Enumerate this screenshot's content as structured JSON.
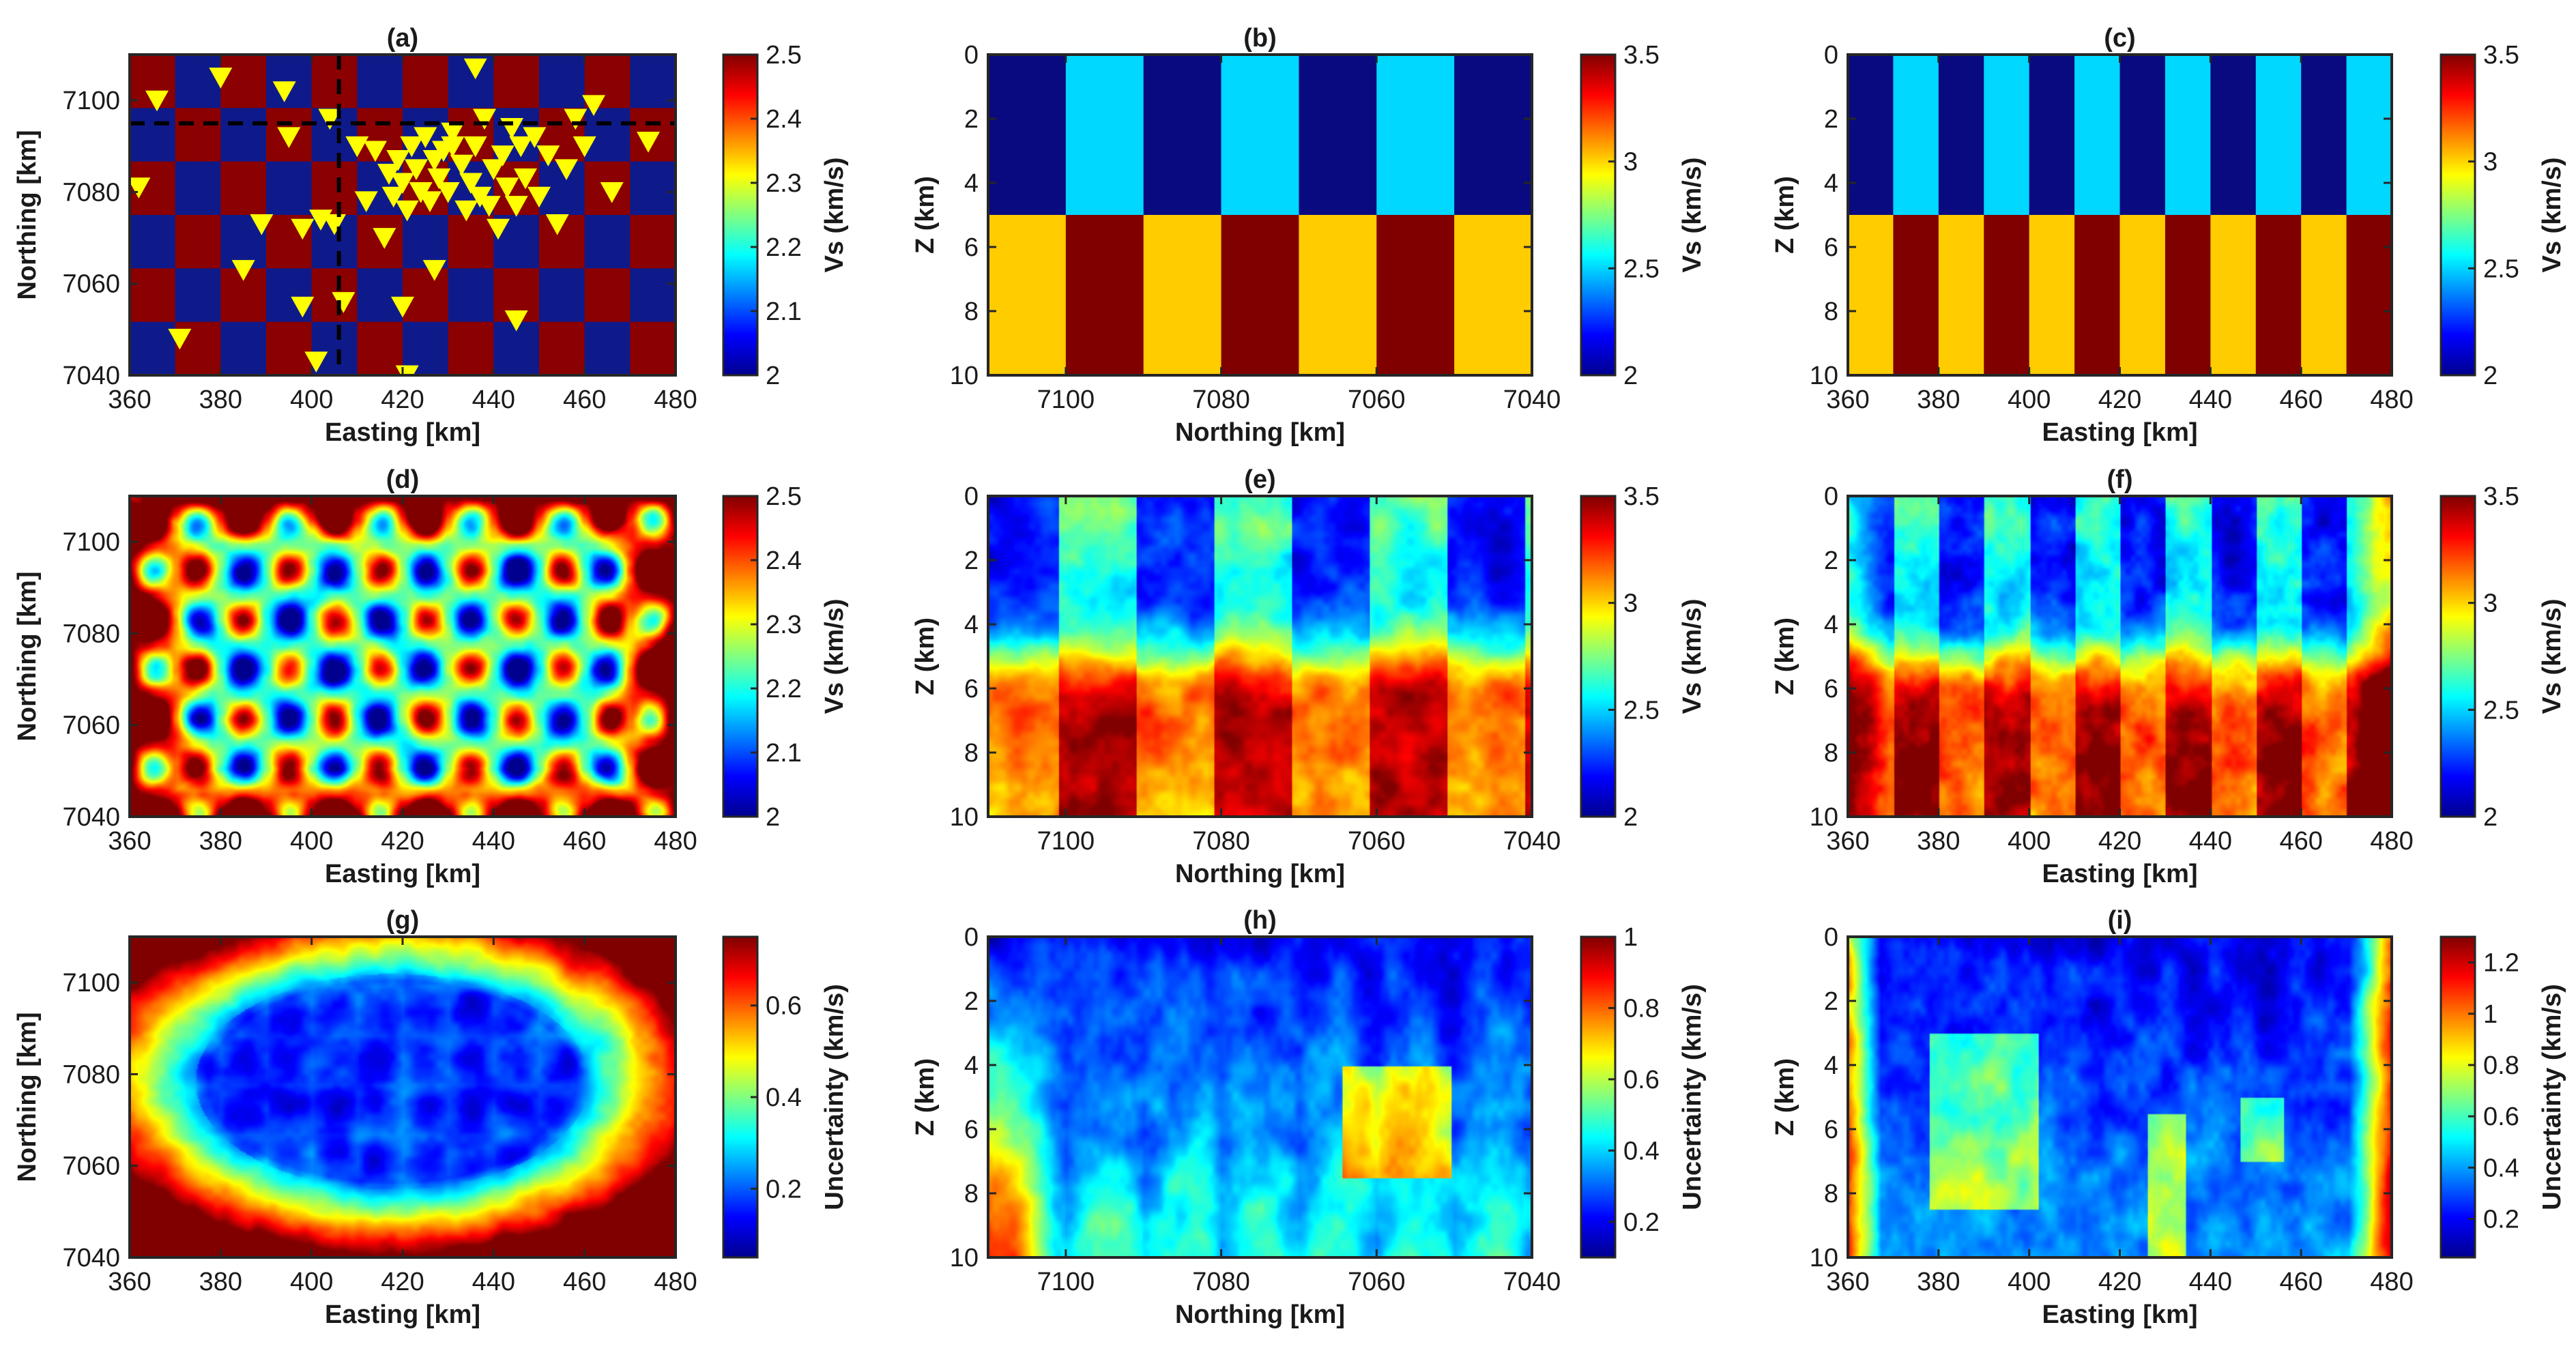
{
  "colormaps": {
    "jet": [
      "#00008f",
      "#0000ff",
      "#0080ff",
      "#00ffff",
      "#80ff80",
      "#ffff00",
      "#ff8000",
      "#ff0000",
      "#800000"
    ],
    "vs_model": {
      "low_top": "#0a0a80",
      "high_top": "#00d8ff",
      "low_bottom": "#ffcc00",
      "high_bottom": "#800000",
      "checker_low": "#0f1a8a",
      "checker_high": "#8b0000"
    },
    "station_color": "#ffff00"
  },
  "chart_data": [
    {
      "id": "a",
      "type": "heatmap",
      "title": "(a)",
      "xlabel": "Easting [km]",
      "ylabel": "Northing [km]",
      "xlim": [
        360,
        480
      ],
      "ylim": [
        7040,
        7110
      ],
      "xticks": [
        "360",
        "380",
        "400",
        "420",
        "440",
        "460",
        "480"
      ],
      "yticks": [
        "7040",
        "7060",
        "7080",
        "7100"
      ],
      "colorbar": {
        "label": "Vs (km/s)",
        "range": [
          2,
          2.5
        ],
        "ticks": [
          "2",
          "2.1",
          "2.2",
          "2.3",
          "2.4",
          "2.5"
        ]
      },
      "checker": {
        "nx": 12,
        "ny": 6,
        "values": [
          2.0,
          2.5
        ]
      },
      "profile_lines": {
        "easting": 406,
        "northing": 7095
      },
      "stations": [
        [
          366,
          7100
        ],
        [
          371,
          7048
        ],
        [
          362,
          7081
        ],
        [
          385,
          7063
        ],
        [
          389,
          7073
        ],
        [
          394,
          7102
        ],
        [
          395,
          7092
        ],
        [
          398,
          7055
        ],
        [
          401,
          7043
        ],
        [
          402,
          7074
        ],
        [
          404,
          7096
        ],
        [
          405,
          7073
        ],
        [
          407,
          7056
        ],
        [
          410,
          7090
        ],
        [
          414,
          7089
        ],
        [
          417,
          7084
        ],
        [
          418,
          7079
        ],
        [
          419,
          7087
        ],
        [
          420,
          7082
        ],
        [
          421,
          7076
        ],
        [
          422,
          7090
        ],
        [
          423,
          7085
        ],
        [
          424,
          7080
        ],
        [
          425,
          7092
        ],
        [
          426,
          7078
        ],
        [
          427,
          7087
        ],
        [
          428,
          7083
        ],
        [
          429,
          7089
        ],
        [
          430,
          7080
        ],
        [
          431,
          7093
        ],
        [
          433,
          7086
        ],
        [
          434,
          7076
        ],
        [
          435,
          7082
        ],
        [
          436,
          7090
        ],
        [
          437,
          7079
        ],
        [
          438,
          7096
        ],
        [
          440,
          7085
        ],
        [
          441,
          7072
        ],
        [
          442,
          7088
        ],
        [
          443,
          7081
        ],
        [
          444,
          7094
        ],
        [
          445,
          7077
        ],
        [
          446,
          7090
        ],
        [
          447,
          7083
        ],
        [
          449,
          7092
        ],
        [
          450,
          7079
        ],
        [
          452,
          7088
        ],
        [
          454,
          7073
        ],
        [
          456,
          7085
        ],
        [
          458,
          7096
        ],
        [
          460,
          7090
        ],
        [
          462,
          7099
        ],
        [
          466,
          7080
        ],
        [
          474,
          7091
        ],
        [
          416,
          7070
        ],
        [
          421,
          7040
        ],
        [
          420,
          7055
        ],
        [
          427,
          7063
        ],
        [
          436,
          7107
        ],
        [
          445,
          7052
        ],
        [
          380,
          7105
        ],
        [
          398,
          7072
        ],
        [
          431,
          7090
        ],
        [
          439,
          7077
        ],
        [
          412,
          7078
        ]
      ]
    },
    {
      "id": "b",
      "type": "heatmap",
      "title": "(b)",
      "xlabel": "Northing [km]",
      "ylabel": "Z (km)",
      "xlim": [
        7110,
        7040
      ],
      "ylim": [
        0,
        10
      ],
      "xticks": [
        "7100",
        "7080",
        "7060",
        "7040"
      ],
      "yticks": [
        "0",
        "2",
        "4",
        "6",
        "8",
        "10"
      ],
      "colorbar": {
        "label": "Vs (km/s)",
        "range": [
          2,
          3.5
        ],
        "ticks": [
          "2",
          "2.5",
          "3",
          "3.5"
        ]
      },
      "blocks": {
        "n": 7,
        "split_depth": 5
      }
    },
    {
      "id": "c",
      "type": "heatmap",
      "title": "(c)",
      "xlabel": "Easting [km]",
      "ylabel": "Z (km)",
      "xlim": [
        360,
        480
      ],
      "ylim": [
        0,
        10
      ],
      "xticks": [
        "360",
        "380",
        "400",
        "420",
        "440",
        "460",
        "480"
      ],
      "yticks": [
        "0",
        "2",
        "4",
        "6",
        "8",
        "10"
      ],
      "colorbar": {
        "label": "Vs (km/s)",
        "range": [
          2,
          3.5
        ],
        "ticks": [
          "2",
          "2.5",
          "3",
          "3.5"
        ]
      },
      "blocks": {
        "n": 12,
        "split_depth": 5
      }
    },
    {
      "id": "d",
      "type": "heatmap",
      "title": "(d)",
      "xlabel": "Easting [km]",
      "ylabel": "Northing [km]",
      "xlim": [
        360,
        480
      ],
      "ylim": [
        7040,
        7110
      ],
      "xticks": [
        "360",
        "380",
        "400",
        "420",
        "440",
        "460",
        "480"
      ],
      "yticks": [
        "7040",
        "7060",
        "7080",
        "7100"
      ],
      "colorbar": {
        "label": "Vs (km/s)",
        "range": [
          2,
          2.5
        ],
        "ticks": [
          "2",
          "2.1",
          "2.2",
          "2.3",
          "2.4",
          "2.5"
        ]
      }
    },
    {
      "id": "e",
      "type": "heatmap",
      "title": "(e)",
      "xlabel": "Northing [km]",
      "ylabel": "Z (km)",
      "xlim": [
        7110,
        7040
      ],
      "ylim": [
        0,
        10
      ],
      "xticks": [
        "7100",
        "7080",
        "7060",
        "7040"
      ],
      "yticks": [
        "0",
        "2",
        "4",
        "6",
        "8",
        "10"
      ],
      "colorbar": {
        "label": "Vs (km/s)",
        "range": [
          2,
          3.5
        ],
        "ticks": [
          "2",
          "2.5",
          "3",
          "3.5"
        ]
      }
    },
    {
      "id": "f",
      "type": "heatmap",
      "title": "(f)",
      "xlabel": "Easting [km]",
      "ylabel": "Z (km)",
      "xlim": [
        360,
        480
      ],
      "ylim": [
        0,
        10
      ],
      "xticks": [
        "360",
        "380",
        "400",
        "420",
        "440",
        "460",
        "480"
      ],
      "yticks": [
        "0",
        "2",
        "4",
        "6",
        "8",
        "10"
      ],
      "colorbar": {
        "label": "Vs (km/s)",
        "range": [
          2,
          3.5
        ],
        "ticks": [
          "2",
          "2.5",
          "3",
          "3.5"
        ]
      }
    },
    {
      "id": "g",
      "type": "heatmap",
      "title": "(g)",
      "xlabel": "Easting [km]",
      "ylabel": "Northing [km]",
      "xlim": [
        360,
        480
      ],
      "ylim": [
        7040,
        7110
      ],
      "xticks": [
        "360",
        "380",
        "400",
        "420",
        "440",
        "460",
        "480"
      ],
      "yticks": [
        "7040",
        "7060",
        "7080",
        "7100"
      ],
      "colorbar": {
        "label": "Uncertainty (km/s)",
        "range": [
          0.05,
          0.75
        ],
        "ticks": [
          "0.2",
          "0.4",
          "0.6"
        ]
      }
    },
    {
      "id": "h",
      "type": "heatmap",
      "title": "(h)",
      "xlabel": "Northing [km]",
      "ylabel": "Z (km)",
      "xlim": [
        7110,
        7040
      ],
      "ylim": [
        0,
        10
      ],
      "xticks": [
        "7100",
        "7080",
        "7060",
        "7040"
      ],
      "yticks": [
        "0",
        "2",
        "4",
        "6",
        "8",
        "10"
      ],
      "colorbar": {
        "label": "Uncertainty (km/s)",
        "range": [
          0.1,
          1.0
        ],
        "ticks": [
          "0.2",
          "0.4",
          "0.6",
          "0.8",
          "1"
        ]
      }
    },
    {
      "id": "i",
      "type": "heatmap",
      "title": "(i)",
      "xlabel": "Easting [km]",
      "ylabel": "Z (km)",
      "xlim": [
        360,
        480
      ],
      "ylim": [
        0,
        10
      ],
      "xticks": [
        "360",
        "380",
        "400",
        "420",
        "440",
        "460",
        "480"
      ],
      "yticks": [
        "0",
        "2",
        "4",
        "6",
        "8",
        "10"
      ],
      "colorbar": {
        "label": "Uncertainty (km/s)",
        "range": [
          0.05,
          1.3
        ],
        "ticks": [
          "0.2",
          "0.4",
          "0.6",
          "0.8",
          "1",
          "1.2"
        ]
      }
    }
  ]
}
